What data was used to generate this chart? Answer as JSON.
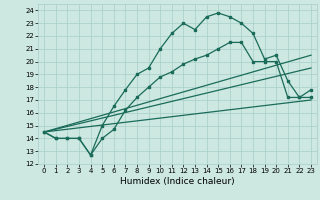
{
  "xlabel": "Humidex (Indice chaleur)",
  "xlim": [
    -0.5,
    23.5
  ],
  "ylim": [
    12,
    24.5
  ],
  "xticks": [
    0,
    1,
    2,
    3,
    4,
    5,
    6,
    7,
    8,
    9,
    10,
    11,
    12,
    13,
    14,
    15,
    16,
    17,
    18,
    19,
    20,
    21,
    22,
    23
  ],
  "yticks": [
    12,
    13,
    14,
    15,
    16,
    17,
    18,
    19,
    20,
    21,
    22,
    23,
    24
  ],
  "bg_color": "#cce8e0",
  "grid_color": "#a8cfc8",
  "line_color": "#1a6b5a",
  "series_main": [
    [
      0,
      14.5
    ],
    [
      1,
      14.0
    ],
    [
      2,
      14.0
    ],
    [
      3,
      14.0
    ],
    [
      4,
      12.7
    ],
    [
      5,
      15.0
    ],
    [
      6,
      16.5
    ],
    [
      7,
      17.8
    ],
    [
      8,
      19.0
    ],
    [
      9,
      19.5
    ],
    [
      10,
      21.0
    ],
    [
      11,
      22.2
    ],
    [
      12,
      23.0
    ],
    [
      13,
      22.5
    ],
    [
      14,
      23.5
    ],
    [
      15,
      23.8
    ],
    [
      16,
      23.5
    ],
    [
      17,
      23.0
    ],
    [
      18,
      22.2
    ],
    [
      19,
      20.2
    ],
    [
      20,
      20.5
    ],
    [
      21,
      18.5
    ],
    [
      22,
      17.2
    ],
    [
      23,
      17.8
    ]
  ],
  "series_lower": [
    [
      0,
      14.5
    ],
    [
      1,
      14.0
    ],
    [
      2,
      14.0
    ],
    [
      3,
      14.0
    ],
    [
      4,
      12.7
    ],
    [
      5,
      14.0
    ],
    [
      6,
      14.7
    ],
    [
      7,
      16.2
    ],
    [
      8,
      17.2
    ],
    [
      9,
      18.0
    ],
    [
      10,
      18.8
    ],
    [
      11,
      19.2
    ],
    [
      12,
      19.8
    ],
    [
      13,
      20.2
    ],
    [
      14,
      20.5
    ],
    [
      15,
      21.0
    ],
    [
      16,
      21.5
    ],
    [
      17,
      21.5
    ],
    [
      18,
      20.0
    ],
    [
      19,
      20.0
    ],
    [
      20,
      20.0
    ],
    [
      21,
      17.2
    ],
    [
      22,
      17.2
    ],
    [
      23,
      17.2
    ]
  ],
  "trend_lines": [
    [
      [
        0,
        14.5
      ],
      [
        23,
        20.5
      ]
    ],
    [
      [
        0,
        14.5
      ],
      [
        23,
        19.5
      ]
    ],
    [
      [
        0,
        14.5
      ],
      [
        23,
        17.0
      ]
    ]
  ],
  "marker_size": 2.0,
  "line_width": 0.9,
  "tick_fontsize": 5.0,
  "xlabel_fontsize": 6.5
}
